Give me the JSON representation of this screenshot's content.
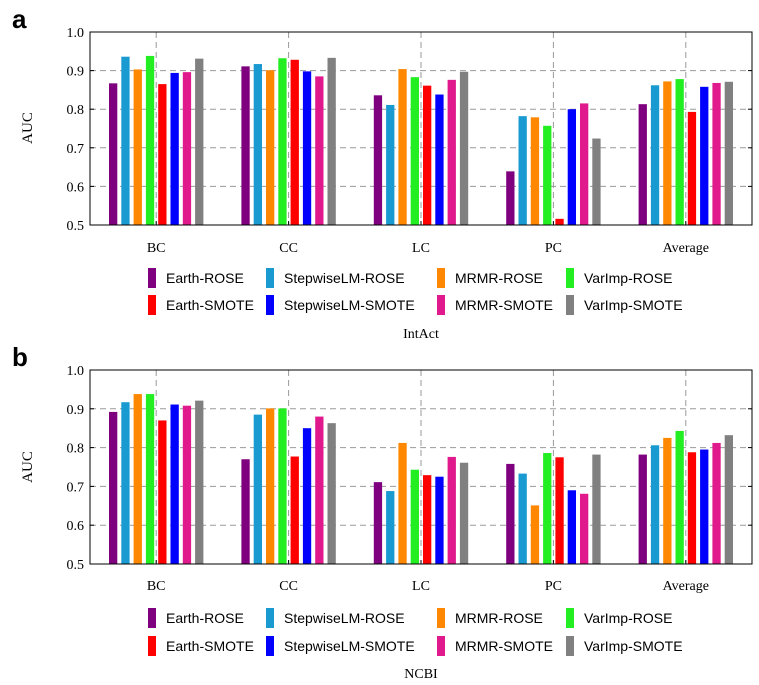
{
  "series_names": [
    "Earth-ROSE",
    "StepwiseLM-ROSE",
    "MRMR-ROSE",
    "VarImp-ROSE",
    "Earth-SMOTE",
    "StepwiseLM-SMOTE",
    "MRMR-SMOTE",
    "VarImp-SMOTE"
  ],
  "series_colors": [
    "#7f007f",
    "#199bd2",
    "#ff8800",
    "#22ee22",
    "#ff0000",
    "#0000ff",
    "#e01a8c",
    "#808080"
  ],
  "chart_data": [
    {
      "type": "bar",
      "panel_label": "a",
      "caption": "IntAct",
      "ylabel": "AUC",
      "ylim": [
        0.5,
        1.0
      ],
      "yticks": [
        "0.5",
        "0.6",
        "0.7",
        "0.8",
        "0.9",
        "1.0"
      ],
      "categories": [
        "BC",
        "CC",
        "LC",
        "PC",
        "Average"
      ],
      "grid": true,
      "legend_position": "bottom",
      "series": [
        {
          "name": "Earth-ROSE",
          "values": [
            0.867,
            0.911,
            0.836,
            0.639,
            0.813
          ]
        },
        {
          "name": "StepwiseLM-ROSE",
          "values": [
            0.936,
            0.917,
            0.811,
            0.782,
            0.862
          ]
        },
        {
          "name": "MRMR-ROSE",
          "values": [
            0.903,
            0.901,
            0.904,
            0.779,
            0.872
          ]
        },
        {
          "name": "VarImp-ROSE",
          "values": [
            0.938,
            0.932,
            0.883,
            0.757,
            0.878
          ]
        },
        {
          "name": "Earth-SMOTE",
          "values": [
            0.865,
            0.928,
            0.861,
            0.516,
            0.793
          ]
        },
        {
          "name": "StepwiseLM-SMOTE",
          "values": [
            0.894,
            0.898,
            0.838,
            0.8,
            0.858
          ]
        },
        {
          "name": "MRMR-SMOTE",
          "values": [
            0.896,
            0.885,
            0.876,
            0.815,
            0.868
          ]
        },
        {
          "name": "VarImp-SMOTE",
          "values": [
            0.931,
            0.933,
            0.897,
            0.724,
            0.871
          ]
        }
      ]
    },
    {
      "type": "bar",
      "panel_label": "b",
      "caption": "NCBI",
      "ylabel": "AUC",
      "ylim": [
        0.5,
        1.0
      ],
      "yticks": [
        "0.5",
        "0.6",
        "0.7",
        "0.8",
        "0.9",
        "1.0"
      ],
      "categories": [
        "BC",
        "CC",
        "LC",
        "PC",
        "Average"
      ],
      "grid": true,
      "legend_position": "bottom",
      "series": [
        {
          "name": "Earth-ROSE",
          "values": [
            0.892,
            0.77,
            0.711,
            0.758,
            0.782
          ]
        },
        {
          "name": "StepwiseLM-ROSE",
          "values": [
            0.917,
            0.885,
            0.688,
            0.733,
            0.806
          ]
        },
        {
          "name": "MRMR-ROSE",
          "values": [
            0.938,
            0.901,
            0.812,
            0.651,
            0.825
          ]
        },
        {
          "name": "VarImp-ROSE",
          "values": [
            0.938,
            0.901,
            0.743,
            0.786,
            0.843
          ]
        },
        {
          "name": "Earth-SMOTE",
          "values": [
            0.87,
            0.777,
            0.729,
            0.775,
            0.788
          ]
        },
        {
          "name": "StepwiseLM-SMOTE",
          "values": [
            0.911,
            0.85,
            0.725,
            0.69,
            0.795
          ]
        },
        {
          "name": "MRMR-SMOTE",
          "values": [
            0.908,
            0.88,
            0.776,
            0.681,
            0.812
          ]
        },
        {
          "name": "VarImp-SMOTE",
          "values": [
            0.921,
            0.863,
            0.761,
            0.782,
            0.832
          ]
        }
      ]
    }
  ]
}
